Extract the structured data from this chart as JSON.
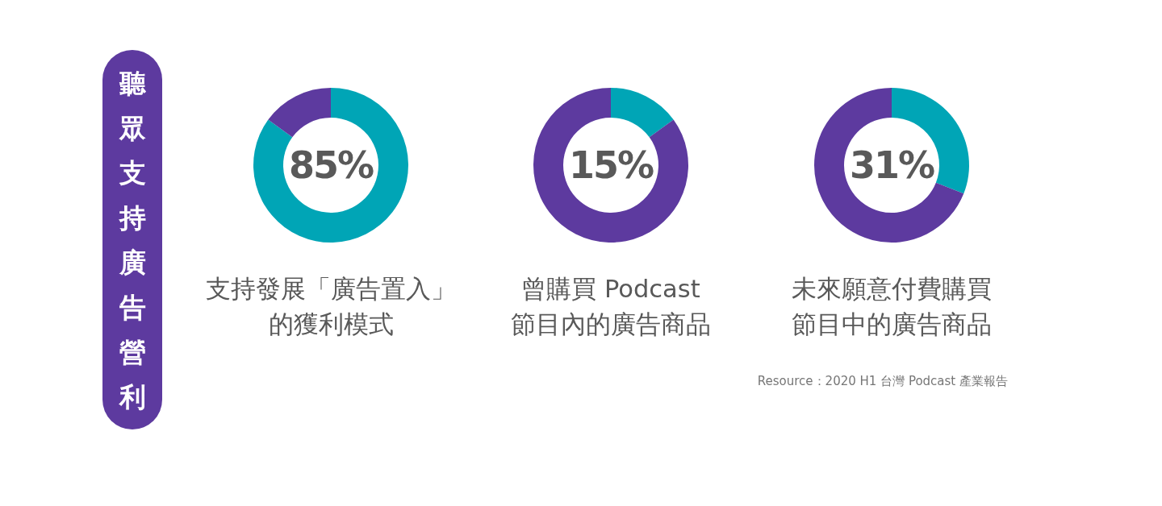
{
  "chart_data": [
    {
      "type": "other",
      "title": "聽眾支持廣告營利",
      "annotations": [
        "Resource：2020 H1 台灣 Podcast 產業報告"
      ]
    },
    {
      "type": "donut",
      "title": "支持發展「廣告置入」的獲利模式",
      "categories": [
        null,
        null
      ],
      "values": [
        85,
        15
      ],
      "colors": [
        "#00a5b6",
        "#5d3a9f"
      ],
      "annotations": [
        "85%"
      ]
    },
    {
      "type": "donut",
      "title": "曾購買 Podcast 節目內的廣告商品",
      "categories": [
        null,
        null
      ],
      "values": [
        15,
        85
      ],
      "colors": [
        "#00a5b6",
        "#5d3a9f"
      ],
      "annotations": [
        "15%"
      ]
    },
    {
      "type": "donut",
      "title": "未來願意付費購買節目中的廣告商品",
      "categories": [
        null,
        null
      ],
      "values": [
        31,
        69
      ],
      "colors": [
        "#00a5b6",
        "#5d3a9f"
      ],
      "annotations": [
        "31%"
      ]
    }
  ]
}
